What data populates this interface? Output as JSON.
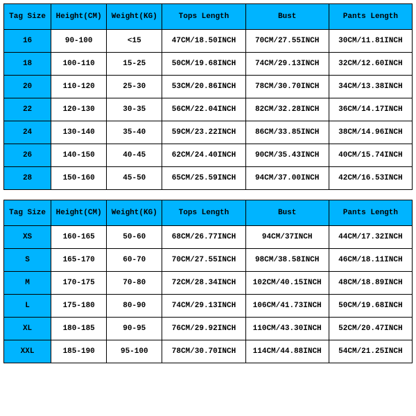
{
  "colors": {
    "header_bg": "#00b4ff",
    "cell_bg": "#ffffff",
    "border": "#000000",
    "text": "#000000"
  },
  "typography": {
    "font_family": "Courier New, monospace",
    "font_size_pt": 8,
    "font_weight": "bold"
  },
  "table1": {
    "type": "table",
    "columns": [
      "Tag Size",
      "Height(CM)",
      "Weight(KG)",
      "Tops Length",
      "Bust",
      "Pants Length"
    ],
    "rows": [
      [
        "16",
        "90-100",
        "<15",
        "47CM/18.50INCH",
        "70CM/27.55INCH",
        "30CM/11.81INCH"
      ],
      [
        "18",
        "100-110",
        "15-25",
        "50CM/19.68INCH",
        "74CM/29.13INCH",
        "32CM/12.60INCH"
      ],
      [
        "20",
        "110-120",
        "25-30",
        "53CM/20.86INCH",
        "78CM/30.70INCH",
        "34CM/13.38INCH"
      ],
      [
        "22",
        "120-130",
        "30-35",
        "56CM/22.04INCH",
        "82CM/32.28INCH",
        "36CM/14.17INCH"
      ],
      [
        "24",
        "130-140",
        "35-40",
        "59CM/23.22INCH",
        "86CM/33.85INCH",
        "38CM/14.96INCH"
      ],
      [
        "26",
        "140-150",
        "40-45",
        "62CM/24.40INCH",
        "90CM/35.43INCH",
        "40CM/15.74INCH"
      ],
      [
        "28",
        "150-160",
        "45-50",
        "65CM/25.59INCH",
        "94CM/37.00INCH",
        "42CM/16.53INCH"
      ]
    ]
  },
  "table2": {
    "type": "table",
    "columns": [
      "Tag Size",
      "Height(CM)",
      "Weight(KG)",
      "Tops Length",
      "Bust",
      "Pants Length"
    ],
    "rows": [
      [
        "XS",
        "160-165",
        "50-60",
        "68CM/26.77INCH",
        "94CM/37INCH",
        "44CM/17.32INCH"
      ],
      [
        "S",
        "165-170",
        "60-70",
        "70CM/27.55INCH",
        "98CM/38.58INCH",
        "46CM/18.11INCH"
      ],
      [
        "M",
        "170-175",
        "70-80",
        "72CM/28.34INCH",
        "102CM/40.15INCH",
        "48CM/18.89INCH"
      ],
      [
        "L",
        "175-180",
        "80-90",
        "74CM/29.13INCH",
        "106CM/41.73INCH",
        "50CM/19.68INCH"
      ],
      [
        "XL",
        "180-185",
        "90-95",
        "76CM/29.92INCH",
        "110CM/43.30INCH",
        "52CM/20.47INCH"
      ],
      [
        "XXL",
        "185-190",
        "95-100",
        "78CM/30.70INCH",
        "114CM/44.88INCH",
        "54CM/21.25INCH"
      ]
    ]
  }
}
